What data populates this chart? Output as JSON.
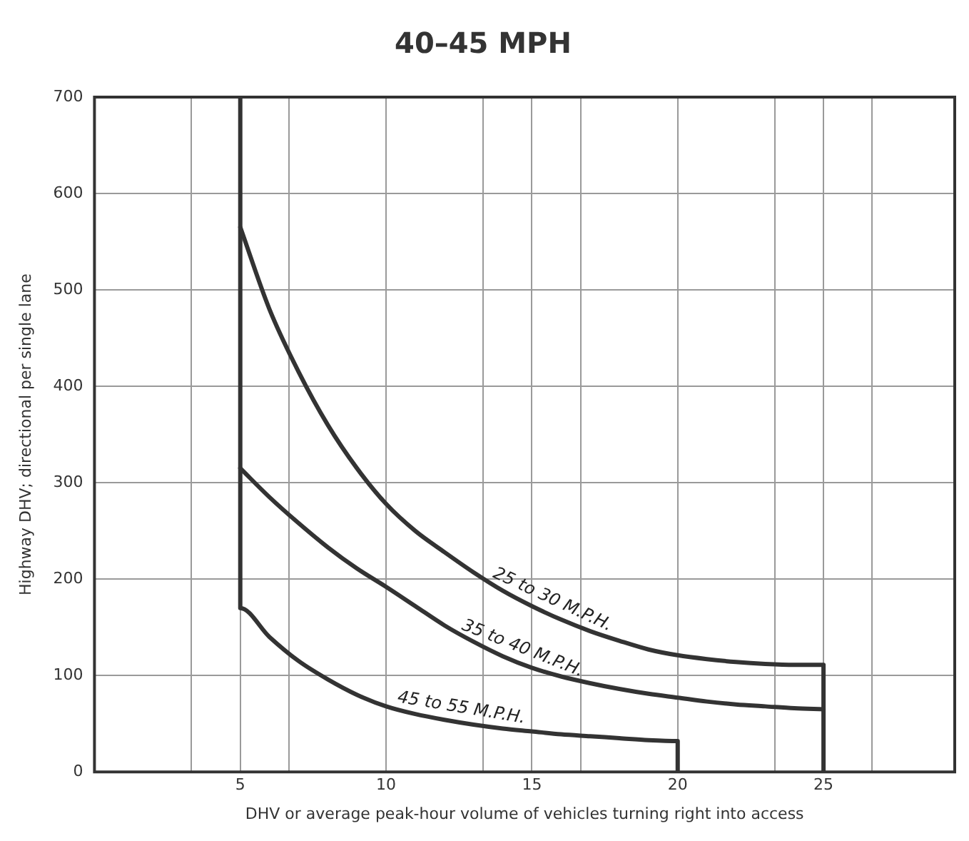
{
  "chart_data": {
    "type": "line",
    "title": "40–45 MPH",
    "xlabel": "DHV or average peak-hour volume of vehicles turning right into access",
    "ylabel": "Highway DHV; directional per single lane",
    "xlim": [
      0,
      29.5
    ],
    "xticks": [
      {
        "value": 3.33,
        "label": null
      },
      5,
      {
        "value": 6.67,
        "label": null
      },
      10,
      {
        "value": 13.33,
        "label": null
      },
      15,
      {
        "value": 16.67,
        "label": null
      },
      20,
      {
        "value": 23.33,
        "label": null
      },
      25,
      {
        "value": 26.67,
        "label": null
      }
    ],
    "ylim": [
      0,
      700
    ],
    "yticks": [
      0,
      100,
      200,
      300,
      400,
      500,
      600,
      700
    ],
    "grid": true,
    "legend": false,
    "marker": "none",
    "line_style": "solid",
    "series": [
      {
        "name": "25 to 30 M.P.H.",
        "color": "#333333",
        "x": [
          5,
          6,
          7,
          8,
          9,
          10,
          11,
          12,
          13,
          14,
          15,
          16,
          17,
          18,
          19,
          20,
          21,
          22,
          23,
          24,
          25,
          25
        ],
        "values": [
          565,
          480,
          415,
          360,
          315,
          278,
          250,
          228,
          207,
          188,
          172,
          158,
          146,
          136,
          127,
          121,
          117,
          114,
          112,
          111,
          111,
          0
        ]
      },
      {
        "name": "35 to 40 M.P.H.",
        "color": "#333333",
        "x": [
          5,
          6,
          7,
          8,
          9,
          10,
          11,
          12,
          13,
          14,
          15,
          16,
          17,
          18,
          19,
          20,
          21,
          22,
          23,
          24,
          25
        ],
        "values": [
          315,
          285,
          258,
          233,
          211,
          192,
          172,
          152,
          135,
          120,
          108,
          99,
          92,
          86,
          81,
          77,
          73,
          70,
          68,
          66,
          65
        ]
      },
      {
        "name": "45 to 55 M.P.H.",
        "color": "#333333",
        "x": [
          5,
          5,
          6,
          7,
          8,
          9,
          10,
          11,
          12,
          13,
          14,
          15,
          16,
          17,
          18,
          19,
          20,
          20
        ],
        "values": [
          700,
          170,
          140,
          115,
          96,
          80,
          68,
          60,
          54,
          49,
          45,
          42,
          39,
          37,
          35,
          33,
          32,
          0
        ]
      }
    ]
  }
}
